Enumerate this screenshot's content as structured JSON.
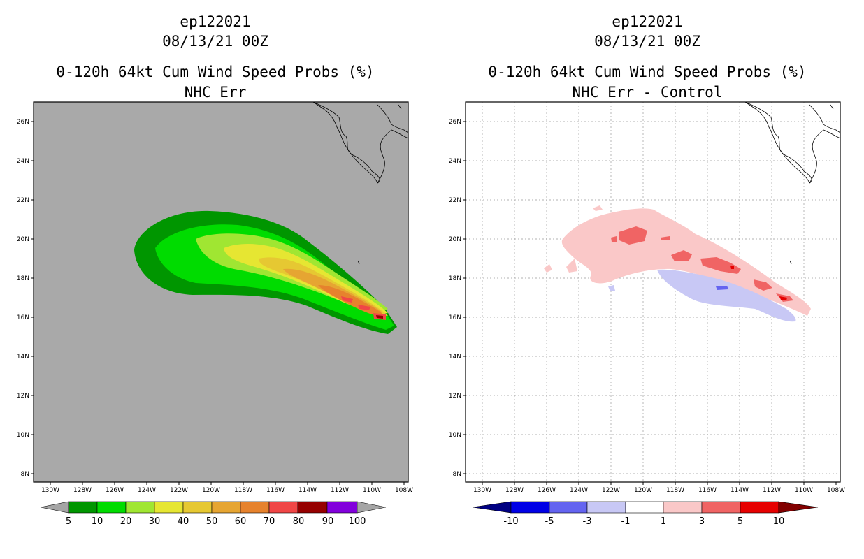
{
  "left_panel": {
    "storm_id": "ep122021",
    "datetime": "08/13/21 00Z",
    "product": "0-120h 64kt Cum Wind Speed Probs (%)",
    "subtitle": "NHC Err",
    "background_color": "#a9a9a9",
    "colorbar": {
      "labels": [
        "5",
        "10",
        "20",
        "30",
        "40",
        "50",
        "60",
        "70",
        "80",
        "90",
        "100"
      ],
      "colors": [
        "#a5a5a5",
        "#009600",
        "#00dc00",
        "#a0e632",
        "#e6e632",
        "#e6c832",
        "#e6a532",
        "#e6822d",
        "#f04646",
        "#960000",
        "#8200dc",
        "#a5a5a5"
      ]
    }
  },
  "right_panel": {
    "storm_id": "ep122021",
    "datetime": "08/13/21 00Z",
    "product": "0-120h 64kt Cum Wind Speed Probs (%)",
    "subtitle": "NHC Err - Control",
    "background_color": "#ffffff",
    "colorbar": {
      "labels": [
        "-10",
        "-5",
        "-3",
        "-1",
        "1",
        "3",
        "5",
        "10"
      ],
      "colors": [
        "#000082",
        "#0000e6",
        "#6464f0",
        "#c8c8f5",
        "#ffffff",
        "#fac8c8",
        "#f06464",
        "#e60000",
        "#820000"
      ]
    }
  },
  "axes": {
    "lat_labels": [
      "26N",
      "24N",
      "22N",
      "20N",
      "18N",
      "16N",
      "14N",
      "12N",
      "10N",
      "8N"
    ],
    "lon_labels": [
      "130W",
      "128W",
      "126W",
      "124W",
      "122W",
      "120W",
      "118W",
      "116W",
      "114W",
      "112W",
      "110W",
      "108W"
    ]
  }
}
